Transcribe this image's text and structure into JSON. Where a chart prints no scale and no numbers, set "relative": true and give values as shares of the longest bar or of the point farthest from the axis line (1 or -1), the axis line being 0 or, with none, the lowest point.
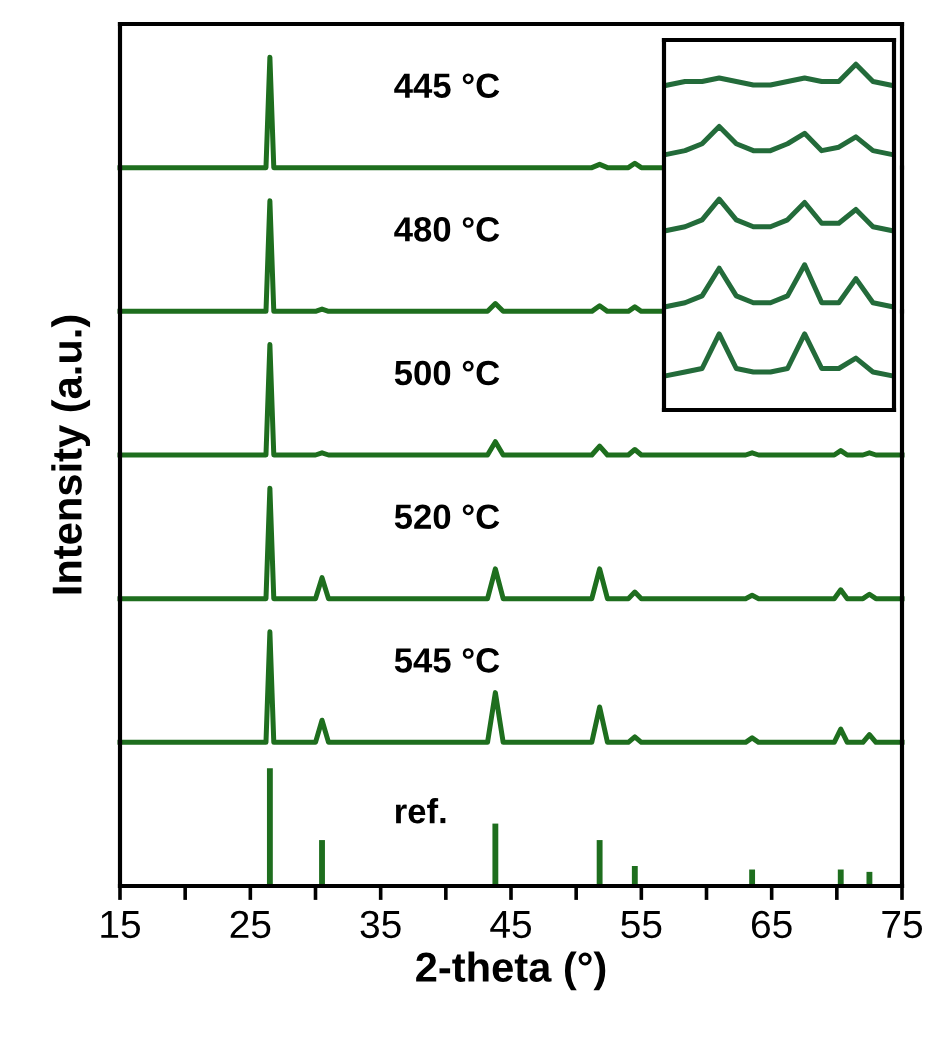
{
  "chart_data": [
    {
      "type": "line",
      "relative": true,
      "ylabel": "Intensity (a.u.)",
      "xlim": [
        15,
        75
      ],
      "tick_labels": false,
      "series": [
        {
          "name": "445 °C",
          "color": "#1e6e1e",
          "x": [
            15,
            26.2,
            26.5,
            26.8,
            30,
            30.5,
            31,
            43.2,
            43.8,
            44.4,
            51.2,
            51.8,
            52.4,
            54,
            54.5,
            55,
            56.5
          ],
          "values": [
            0,
            0,
            1,
            0,
            0,
            0,
            0,
            0,
            0,
            0,
            0,
            0.03,
            0,
            0,
            0.04,
            0,
            0
          ]
        }
      ]
    },
    {
      "type": "line",
      "relative": true,
      "xlim": [
        15,
        75
      ],
      "tick_labels": false,
      "series": [
        {
          "name": "480 °C",
          "color": "#1e6e1e",
          "x": [
            15,
            26.2,
            26.5,
            26.8,
            30,
            30.5,
            31,
            43.2,
            43.8,
            44.4,
            51.2,
            51.8,
            52.4,
            54,
            54.5,
            55,
            56.5
          ],
          "values": [
            0,
            0,
            1,
            0,
            0,
            0.02,
            0,
            0,
            0.07,
            0,
            0,
            0.05,
            0,
            0,
            0.04,
            0,
            0
          ]
        }
      ]
    },
    {
      "type": "line",
      "relative": true,
      "xlim": [
        15,
        75
      ],
      "tick_labels": false,
      "series": [
        {
          "name": "500 °C",
          "color": "#1e6e1e",
          "x": [
            15,
            26.2,
            26.5,
            26.8,
            30,
            30.5,
            31,
            43.2,
            43.8,
            44.4,
            51.2,
            51.8,
            52.4,
            54,
            54.5,
            55,
            63,
            63.5,
            64,
            69.8,
            70.3,
            70.8,
            72,
            72.5,
            73,
            75
          ],
          "values": [
            0,
            0,
            1,
            0,
            0,
            0.02,
            0,
            0,
            0.12,
            0,
            0,
            0.08,
            0,
            0,
            0.05,
            0,
            0,
            0.02,
            0,
            0,
            0.04,
            0,
            0,
            0.02,
            0,
            0
          ]
        }
      ]
    },
    {
      "type": "line",
      "relative": true,
      "xlim": [
        15,
        75
      ],
      "tick_labels": false,
      "series": [
        {
          "name": "520 °C",
          "color": "#1e6e1e",
          "x": [
            15,
            26.2,
            26.5,
            26.8,
            30,
            30.5,
            31,
            43.2,
            43.8,
            44.4,
            51.2,
            51.8,
            52.4,
            54,
            54.5,
            55,
            63,
            63.5,
            64,
            69.8,
            70.3,
            70.8,
            72,
            72.5,
            73,
            75
          ],
          "values": [
            0,
            0,
            1,
            0,
            0,
            0.19,
            0,
            0,
            0.27,
            0,
            0,
            0.27,
            0,
            0,
            0.06,
            0,
            0,
            0.03,
            0,
            0,
            0.08,
            0,
            0,
            0.04,
            0,
            0
          ]
        }
      ]
    },
    {
      "type": "line",
      "relative": true,
      "xlim": [
        15,
        75
      ],
      "tick_labels": false,
      "series": [
        {
          "name": "545 °C",
          "color": "#1e6e1e",
          "x": [
            15,
            26.2,
            26.5,
            26.8,
            30,
            30.5,
            31,
            43.2,
            43.8,
            44.4,
            51.2,
            51.8,
            52.4,
            54,
            54.5,
            55,
            63,
            63.5,
            64,
            69.8,
            70.3,
            70.8,
            72,
            72.5,
            73,
            75
          ],
          "values": [
            0,
            0,
            1,
            0,
            0,
            0.2,
            0,
            0,
            0.45,
            0,
            0,
            0.32,
            0,
            0,
            0.05,
            0,
            0,
            0.04,
            0,
            0,
            0.12,
            0,
            0,
            0.07,
            0,
            0
          ]
        }
      ]
    },
    {
      "type": "bar",
      "relative": true,
      "xlabel": "2-theta (°)",
      "xlim": [
        15,
        75
      ],
      "tick_labels": "x",
      "xticks": [
        15,
        {
          "value": 20,
          "label": null
        },
        25,
        {
          "value": 30,
          "label": null
        },
        35,
        {
          "value": 40,
          "label": null
        },
        45,
        {
          "value": 50,
          "label": null
        },
        55,
        {
          "value": 60,
          "label": null
        },
        65,
        {
          "value": 70,
          "label": null
        },
        75
      ],
      "series": [
        {
          "name": "ref.",
          "color": "#1e6e1e",
          "x": [
            26.5,
            30.5,
            43.8,
            51.8,
            54.5,
            63.5,
            70.3,
            72.5
          ],
          "values": [
            1,
            0.39,
            0.53,
            0.39,
            0.17,
            0.14,
            0.14,
            0.12
          ]
        }
      ]
    },
    {
      "type": "line",
      "relative": true,
      "tick_labels": false,
      "categories": [
        null,
        null,
        null,
        null,
        null,
        null,
        null,
        null,
        null,
        null,
        null,
        null,
        null,
        null
      ],
      "series": [
        {
          "color": "#236b3a",
          "values": [
            0.94,
            0.95,
            0.95,
            0.96,
            0.95,
            0.94,
            0.94,
            0.95,
            0.96,
            0.95,
            0.95,
            1.0,
            0.95,
            0.94
          ]
        },
        {
          "color": "#236b3a",
          "values": [
            0.74,
            0.75,
            0.77,
            0.82,
            0.77,
            0.75,
            0.75,
            0.77,
            0.8,
            0.75,
            0.76,
            0.79,
            0.75,
            0.74
          ]
        },
        {
          "color": "#236b3a",
          "values": [
            0.52,
            0.53,
            0.55,
            0.61,
            0.55,
            0.53,
            0.53,
            0.55,
            0.6,
            0.54,
            0.54,
            0.58,
            0.53,
            0.52
          ]
        },
        {
          "color": "#236b3a",
          "values": [
            0.3,
            0.31,
            0.33,
            0.41,
            0.33,
            0.31,
            0.31,
            0.33,
            0.42,
            0.31,
            0.31,
            0.38,
            0.31,
            0.3
          ]
        },
        {
          "color": "#236b3a",
          "values": [
            0.1,
            0.11,
            0.12,
            0.22,
            0.12,
            0.11,
            0.11,
            0.12,
            0.22,
            0.12,
            0.12,
            0.15,
            0.11,
            0.1
          ]
        }
      ]
    }
  ]
}
